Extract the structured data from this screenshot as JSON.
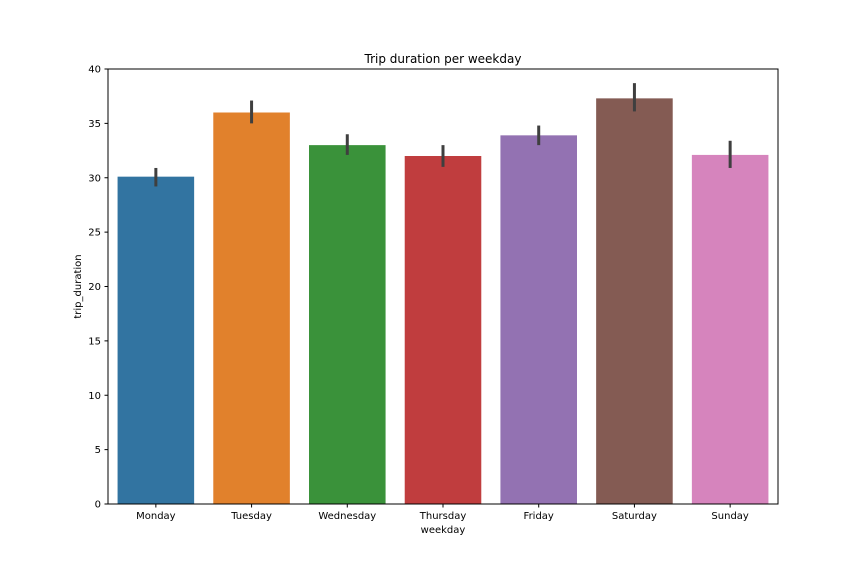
{
  "chart_data": {
    "type": "bar",
    "title": "Trip duration per weekday",
    "xlabel": "weekday",
    "ylabel": "trip_duration",
    "ylim": [
      0,
      40
    ],
    "yticks": [
      0,
      5,
      10,
      15,
      20,
      25,
      30,
      35,
      40
    ],
    "categories": [
      "Monday",
      "Tuesday",
      "Wednesday",
      "Thursday",
      "Friday",
      "Saturday",
      "Sunday"
    ],
    "values": [
      30.1,
      36.0,
      33.0,
      32.0,
      33.9,
      37.3,
      32.1
    ],
    "error_low": [
      29.2,
      35.0,
      32.1,
      31.0,
      33.0,
      36.1,
      30.9
    ],
    "error_high": [
      30.9,
      37.1,
      34.0,
      33.0,
      34.8,
      38.7,
      33.4
    ],
    "colors": [
      "#3274a1",
      "#e1812c",
      "#3a923a",
      "#c03d3e",
      "#9372b2",
      "#845b53",
      "#d684bd"
    ],
    "error_color": "#3f3f3f",
    "grid": false,
    "legend": "none"
  }
}
